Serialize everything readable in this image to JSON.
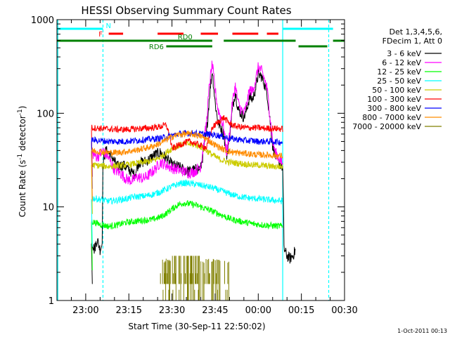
{
  "chart_data": {
    "type": "line",
    "title": "HESSI Observing Summary Count Rates",
    "xlabel": "Start Time (30-Sep-11 22:50:02)",
    "ylabel_main": "Count Rate (s",
    "ylabel_sup1": "-1",
    "ylabel_mid": " detector",
    "ylabel_sup2": "-1",
    "ylabel_end": ")",
    "y_scale": "log",
    "ylim": [
      1,
      1000
    ],
    "xlim_minutes": [
      0,
      100
    ],
    "x_ticks": [
      {
        "label": "23:00",
        "t": 10
      },
      {
        "label": "23:15",
        "t": 25
      },
      {
        "label": "23:30",
        "t": 40
      },
      {
        "label": "23:45",
        "t": 55
      },
      {
        "label": "00:00",
        "t": 70
      },
      {
        "label": "00:15",
        "t": 85
      },
      {
        "label": "00:30",
        "t": 100
      }
    ],
    "y_ticks": [
      {
        "label": "1",
        "v": 1
      },
      {
        "label": "10",
        "v": 10
      },
      {
        "label": "100",
        "v": 100
      },
      {
        "label": "1000",
        "v": 1000
      }
    ],
    "legend_header": [
      "Det 1,3,4,5,6,",
      "FDecim 1, Att 0"
    ],
    "legend_position": "right",
    "flags": [
      {
        "label": "N",
        "color": "#00ffff",
        "row": 1,
        "segments": [
          [
            0,
            16
          ],
          [
            78.5,
            96
          ]
        ]
      },
      {
        "label": "F",
        "color": "#ff0000",
        "row": 2,
        "segments": [
          [
            18,
            23
          ],
          [
            35,
            44
          ],
          [
            50,
            56
          ],
          [
            61,
            70
          ],
          [
            73,
            77
          ]
        ]
      },
      {
        "label": "RD0",
        "color": "#008000",
        "row": 3,
        "segments": [
          [
            0,
            54
          ],
          [
            58,
            83
          ],
          [
            96,
            100
          ]
        ]
      },
      {
        "label": "RD6",
        "color": "#008000",
        "row": 4,
        "segments": [
          [
            38,
            54
          ],
          [
            84,
            94
          ]
        ]
      }
    ],
    "label_positions": {
      "N": 17,
      "F": 14.5,
      "RD0": 42,
      "RD6": 32
    },
    "vlines": [
      {
        "t": 0.3,
        "color": "#00ffff",
        "style": "solid"
      },
      {
        "t": 16,
        "color": "#00ffff",
        "style": "dashed"
      },
      {
        "t": 78.5,
        "color": "#00ffff",
        "style": "solid"
      },
      {
        "t": 94.5,
        "color": "#00ffff",
        "style": "dashed"
      }
    ],
    "segments_time": [
      12.3,
      78.6
    ],
    "series": [
      {
        "name": "3 - 6 keV",
        "color": "#000000",
        "points": [
          [
            12,
            4.5
          ],
          [
            13,
            3.5
          ],
          [
            14,
            4.5
          ],
          [
            15,
            3.5
          ],
          [
            15.7,
            4
          ],
          [
            16,
            30
          ],
          [
            17,
            40
          ],
          [
            19,
            35
          ],
          [
            21,
            27
          ],
          [
            23,
            28
          ],
          [
            25,
            25
          ],
          [
            27,
            22
          ],
          [
            28.5,
            30
          ],
          [
            30,
            30
          ],
          [
            32,
            32
          ],
          [
            34,
            36
          ],
          [
            36,
            38
          ],
          [
            38,
            33
          ],
          [
            40,
            28
          ],
          [
            42,
            27
          ],
          [
            44,
            25
          ],
          [
            46,
            24
          ],
          [
            48,
            25
          ],
          [
            50,
            26
          ],
          [
            52,
            60
          ],
          [
            53,
            150
          ],
          [
            54,
            290
          ],
          [
            55,
            130
          ],
          [
            56,
            80
          ],
          [
            57,
            70
          ],
          [
            58,
            60
          ],
          [
            59,
            35
          ],
          [
            60,
            55
          ],
          [
            61,
            110
          ],
          [
            62,
            170
          ],
          [
            63,
            110
          ],
          [
            64,
            100
          ],
          [
            65,
            90
          ],
          [
            66,
            110
          ],
          [
            67,
            150
          ],
          [
            68,
            140
          ],
          [
            69,
            180
          ],
          [
            70,
            260
          ],
          [
            71,
            250
          ],
          [
            72,
            210
          ],
          [
            73,
            170
          ],
          [
            74,
            90
          ],
          [
            75,
            45
          ],
          [
            76,
            35
          ],
          [
            77,
            30
          ],
          [
            78,
            28
          ],
          [
            78.5,
            26
          ],
          [
            79,
            3.5
          ],
          [
            80,
            3.0
          ],
          [
            81,
            2.8
          ],
          [
            82,
            3.0
          ],
          [
            83,
            3.5
          ]
        ]
      },
      {
        "name": "6 - 12 keV",
        "color": "#ff00ff",
        "points": [
          [
            12,
            38
          ],
          [
            14,
            34
          ],
          [
            16,
            40
          ],
          [
            18,
            33
          ],
          [
            20,
            25
          ],
          [
            22,
            23
          ],
          [
            24,
            20
          ],
          [
            26,
            19
          ],
          [
            28,
            21
          ],
          [
            30,
            20
          ],
          [
            32,
            22
          ],
          [
            34,
            25
          ],
          [
            36,
            30
          ],
          [
            38,
            28
          ],
          [
            40,
            26
          ],
          [
            42,
            25
          ],
          [
            44,
            24
          ],
          [
            46,
            23
          ],
          [
            48,
            24
          ],
          [
            50,
            27
          ],
          [
            52,
            80
          ],
          [
            53,
            200
          ],
          [
            54,
            340
          ],
          [
            55,
            180
          ],
          [
            56,
            110
          ],
          [
            57,
            90
          ],
          [
            58,
            70
          ],
          [
            59,
            38
          ],
          [
            60,
            60
          ],
          [
            61,
            130
          ],
          [
            62,
            200
          ],
          [
            63,
            130
          ],
          [
            64,
            110
          ],
          [
            65,
            100
          ],
          [
            66,
            125
          ],
          [
            67,
            180
          ],
          [
            68,
            170
          ],
          [
            69,
            220
          ],
          [
            70,
            310
          ],
          [
            71,
            290
          ],
          [
            72,
            240
          ],
          [
            73,
            190
          ],
          [
            74,
            100
          ],
          [
            75,
            50
          ],
          [
            76,
            38
          ],
          [
            77,
            34
          ],
          [
            78,
            30
          ],
          [
            78.5,
            28
          ]
        ]
      },
      {
        "name": "12 - 25 keV",
        "color": "#00ff00",
        "points": [
          [
            12,
            7
          ],
          [
            15,
            6.5
          ],
          [
            18,
            6.2
          ],
          [
            21,
            6.4
          ],
          [
            24,
            6.8
          ],
          [
            27,
            7.0
          ],
          [
            30,
            7.2
          ],
          [
            33,
            7.3
          ],
          [
            36,
            7.8
          ],
          [
            38,
            8.5
          ],
          [
            40,
            9.5
          ],
          [
            42,
            10.5
          ],
          [
            44,
            11.0
          ],
          [
            46,
            10.8
          ],
          [
            48,
            10.5
          ],
          [
            50,
            10.0
          ],
          [
            52,
            9.5
          ],
          [
            54,
            9.0
          ],
          [
            56,
            8.5
          ],
          [
            58,
            8.0
          ],
          [
            60,
            7.5
          ],
          [
            62,
            7.2
          ],
          [
            64,
            7.0
          ],
          [
            66,
            6.8
          ],
          [
            68,
            6.6
          ],
          [
            70,
            6.5
          ],
          [
            72,
            6.4
          ],
          [
            75,
            6.3
          ],
          [
            78.5,
            6.2
          ]
        ]
      },
      {
        "name": "25 - 50 keV",
        "color": "#00ffff",
        "points": [
          [
            12,
            12.5
          ],
          [
            15,
            12.0
          ],
          [
            18,
            11.5
          ],
          [
            21,
            11.8
          ],
          [
            24,
            12.2
          ],
          [
            27,
            12.8
          ],
          [
            30,
            13.0
          ],
          [
            33,
            13.5
          ],
          [
            36,
            14.5
          ],
          [
            38,
            15.5
          ],
          [
            40,
            16.5
          ],
          [
            42,
            17.5
          ],
          [
            44,
            18.0
          ],
          [
            46,
            17.8
          ],
          [
            48,
            17.5
          ],
          [
            50,
            17.0
          ],
          [
            52,
            16.5
          ],
          [
            54,
            16.0
          ],
          [
            56,
            15.2
          ],
          [
            58,
            14.5
          ],
          [
            60,
            13.8
          ],
          [
            62,
            13.2
          ],
          [
            64,
            12.8
          ],
          [
            66,
            12.5
          ],
          [
            68,
            12.3
          ],
          [
            70,
            12.2
          ],
          [
            72,
            12.0
          ],
          [
            75,
            11.8
          ],
          [
            78.5,
            11.5
          ]
        ]
      },
      {
        "name": "50 - 100 keV",
        "color": "#cccc00",
        "points": [
          [
            12,
            28
          ],
          [
            15,
            27.5
          ],
          [
            18,
            27
          ],
          [
            21,
            27.5
          ],
          [
            24,
            28
          ],
          [
            27,
            29
          ],
          [
            30,
            30
          ],
          [
            33,
            31
          ],
          [
            36,
            34
          ],
          [
            38,
            38
          ],
          [
            40,
            42
          ],
          [
            42,
            45
          ],
          [
            44,
            47
          ],
          [
            46,
            47
          ],
          [
            48,
            46
          ],
          [
            50,
            44
          ],
          [
            52,
            40
          ],
          [
            54,
            36
          ],
          [
            56,
            33
          ],
          [
            58,
            31
          ],
          [
            60,
            30
          ],
          [
            62,
            29.5
          ],
          [
            64,
            29
          ],
          [
            66,
            28.5
          ],
          [
            68,
            28
          ],
          [
            70,
            28
          ],
          [
            72,
            27.5
          ],
          [
            75,
            27
          ],
          [
            78.5,
            27
          ]
        ]
      },
      {
        "name": "100 - 300 keV",
        "color": "#ff0000",
        "points": [
          [
            12,
            70
          ],
          [
            15,
            69
          ],
          [
            18,
            68
          ],
          [
            21,
            67
          ],
          [
            24,
            67
          ],
          [
            27,
            68
          ],
          [
            30,
            69
          ],
          [
            33,
            70
          ],
          [
            36,
            72
          ],
          [
            38,
            75
          ],
          [
            39,
            60
          ],
          [
            40,
            42
          ],
          [
            42,
            45
          ],
          [
            44,
            48
          ],
          [
            46,
            50
          ],
          [
            48,
            48
          ],
          [
            50,
            45
          ],
          [
            52,
            43
          ],
          [
            54,
            70
          ],
          [
            56,
            80
          ],
          [
            58,
            90
          ],
          [
            60,
            78
          ],
          [
            62,
            73
          ],
          [
            64,
            71
          ],
          [
            66,
            70
          ],
          [
            68,
            70
          ],
          [
            70,
            70
          ],
          [
            72,
            69
          ],
          [
            75,
            69
          ],
          [
            78.5,
            68
          ]
        ]
      },
      {
        "name": "300 - 800 keV",
        "color": "#0000ff",
        "points": [
          [
            12,
            52
          ],
          [
            15,
            51
          ],
          [
            18,
            50
          ],
          [
            21,
            50
          ],
          [
            24,
            50
          ],
          [
            27,
            51
          ],
          [
            30,
            52
          ],
          [
            33,
            53
          ],
          [
            36,
            54
          ],
          [
            38,
            56
          ],
          [
            40,
            58
          ],
          [
            42,
            60
          ],
          [
            44,
            61
          ],
          [
            46,
            61
          ],
          [
            48,
            61
          ],
          [
            50,
            60
          ],
          [
            52,
            60
          ],
          [
            54,
            59
          ],
          [
            56,
            58
          ],
          [
            58,
            56
          ],
          [
            60,
            54
          ],
          [
            62,
            53
          ],
          [
            64,
            52
          ],
          [
            66,
            51
          ],
          [
            68,
            51
          ],
          [
            70,
            50
          ],
          [
            72,
            50
          ],
          [
            75,
            50
          ],
          [
            78.5,
            49
          ]
        ]
      },
      {
        "name": "800 - 7000 keV",
        "color": "#ff8c00",
        "points": [
          [
            12,
            40
          ],
          [
            15,
            39
          ],
          [
            18,
            38
          ],
          [
            21,
            38
          ],
          [
            24,
            39
          ],
          [
            27,
            40
          ],
          [
            30,
            42
          ],
          [
            33,
            44
          ],
          [
            36,
            48
          ],
          [
            38,
            52
          ],
          [
            40,
            56
          ],
          [
            42,
            59
          ],
          [
            44,
            60
          ],
          [
            46,
            60
          ],
          [
            48,
            59
          ],
          [
            50,
            57
          ],
          [
            52,
            53
          ],
          [
            54,
            48
          ],
          [
            56,
            44
          ],
          [
            58,
            41
          ],
          [
            60,
            39
          ],
          [
            62,
            38
          ],
          [
            64,
            37.5
          ],
          [
            66,
            37
          ],
          [
            68,
            36.5
          ],
          [
            70,
            36
          ],
          [
            72,
            36
          ],
          [
            75,
            35.5
          ],
          [
            78.5,
            35
          ]
        ]
      },
      {
        "name": "7000 - 20000 keV",
        "color": "#808000",
        "points": []
      }
    ],
    "brown_bars": {
      "t_start": 36,
      "t_end": 60,
      "low": 1.5,
      "high": 2.8,
      "peak_start": 40,
      "peak_end": 50,
      "peak_high": 3.0
    }
  },
  "footer_timestamp": "1-Oct-2011 00:13"
}
